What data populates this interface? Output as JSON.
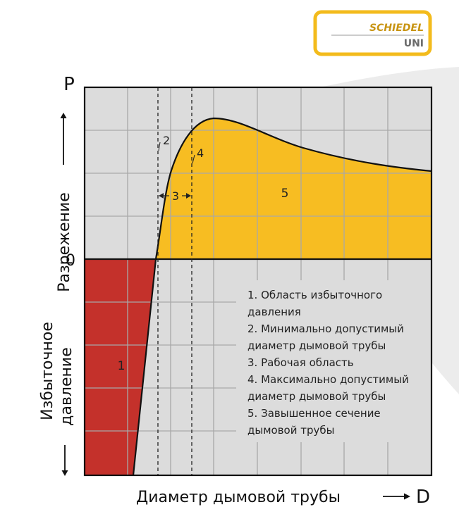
{
  "logo": {
    "brand": "SCHIEDEL",
    "product": "UNI"
  },
  "axes": {
    "y_symbol": "P",
    "x_symbol": "D",
    "zero_label": "0",
    "y_label_positive": "Разрежение",
    "y_label_negative_line1": "Избыточное",
    "y_label_negative_line2": "давление",
    "x_label": "Диаметр дымовой трубы"
  },
  "markers": {
    "region1": "1",
    "line2": "2",
    "range3": "3",
    "line4": "4",
    "region5": "5"
  },
  "legend": [
    "1. Область избыточного",
    "давления",
    "2. Минимально допустимый",
    "диаметр дымовой трубы",
    "3. Рабочая область",
    "4. Максимально допустимый",
    "диаметр дымовой трубы",
    "5. Завышенное сечение",
    "дымовой трубы"
  ],
  "colors": {
    "overpressure": "#c4312b",
    "draft": "#f7bd22",
    "plot_bg": "#dcdcdc",
    "grid": "#a8a8a8",
    "logo_border": "#f3bb1c",
    "logo_text": "#c89412",
    "wave": "#ececec"
  }
}
